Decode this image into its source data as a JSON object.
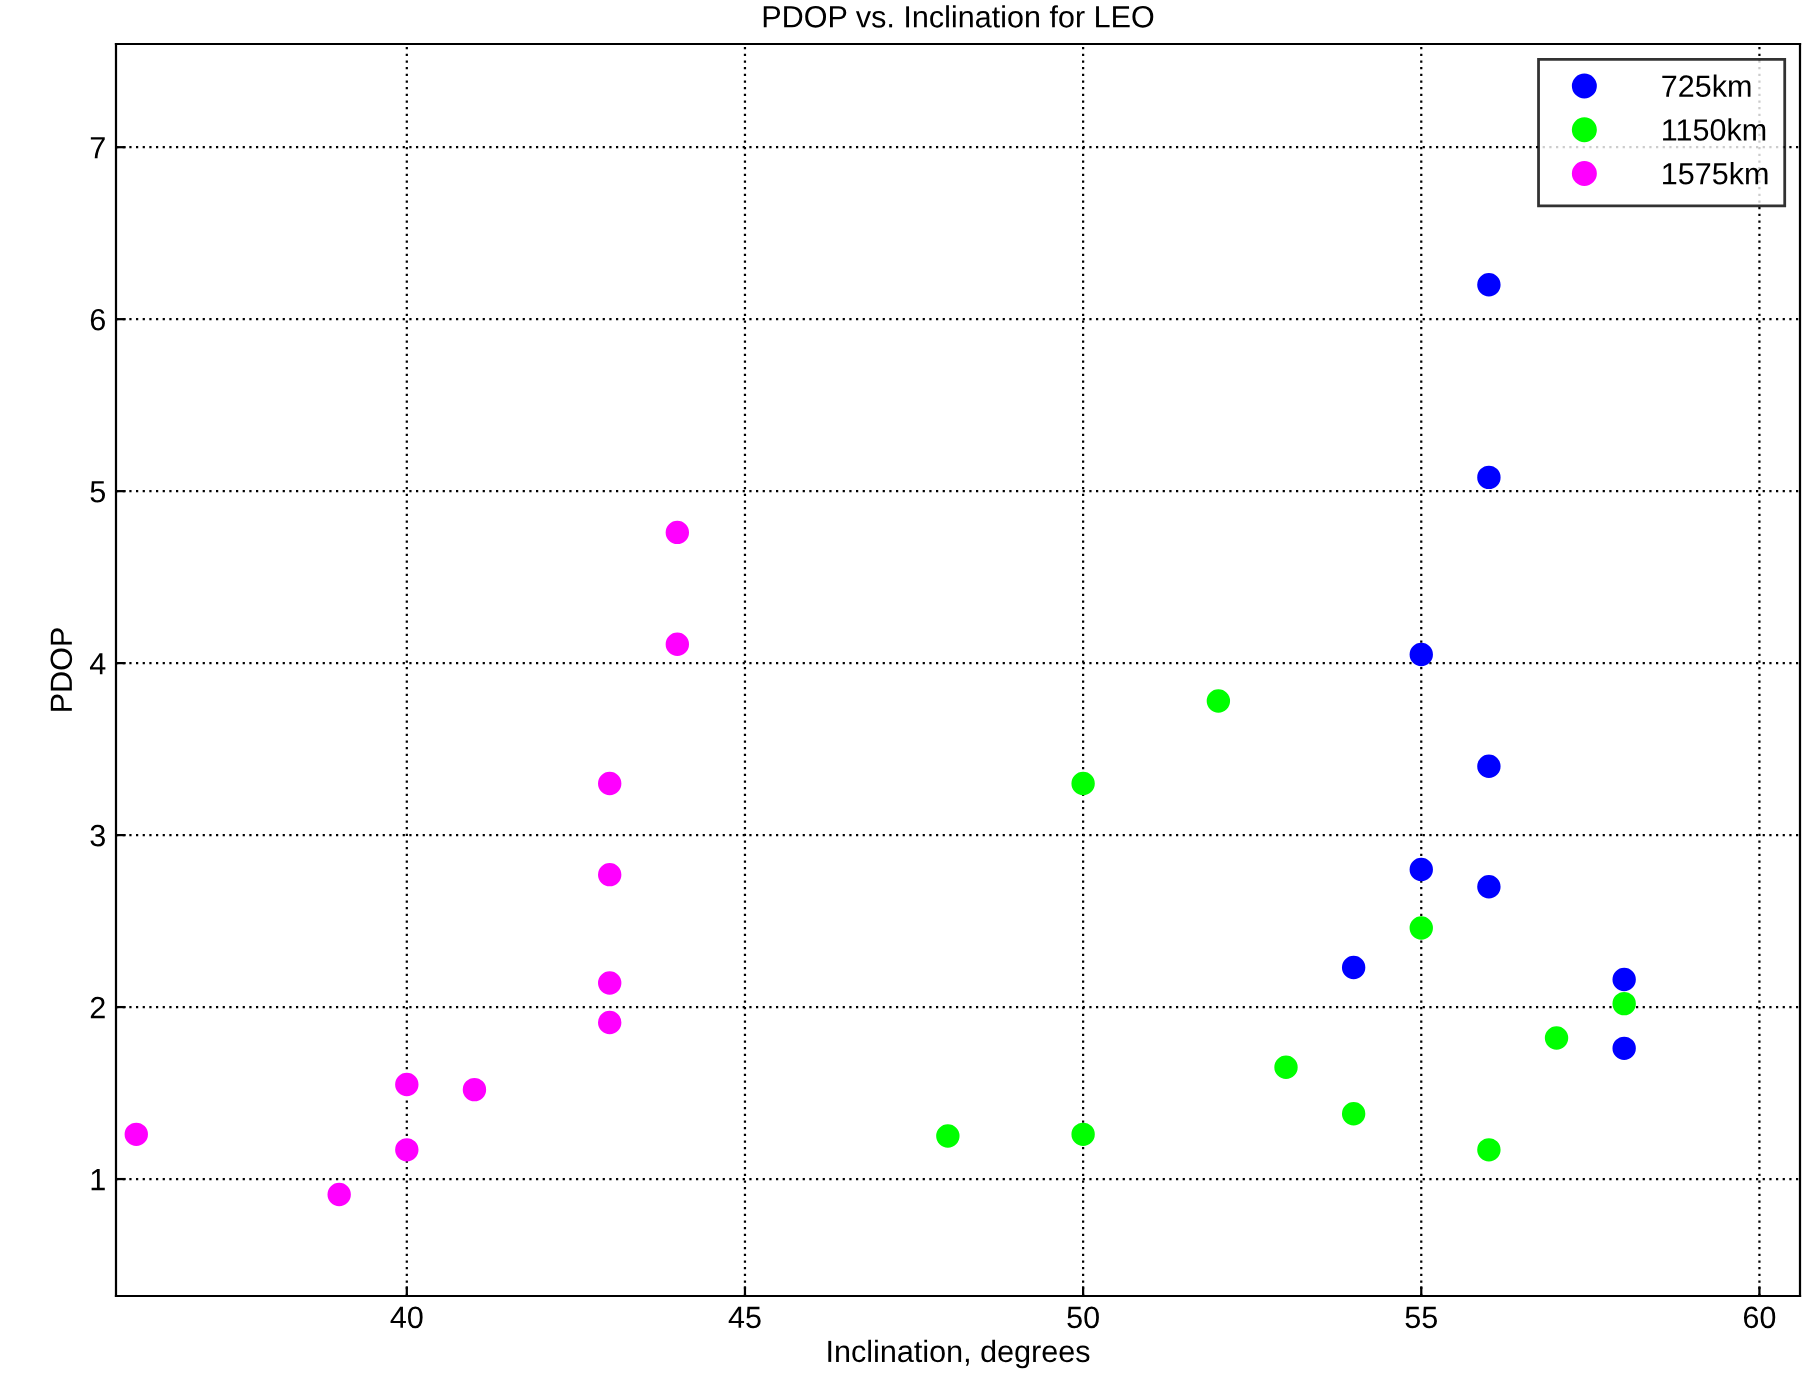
{
  "chart_data": {
    "type": "scatter",
    "title": "PDOP vs. Inclination for LEO",
    "xlabel": "Inclination, degrees",
    "ylabel": "PDOP",
    "xlim": [
      35.7,
      60.6
    ],
    "ylim": [
      0.32,
      7.6
    ],
    "xticks": [
      40,
      45,
      50,
      55,
      60
    ],
    "yticks": [
      1,
      2,
      3,
      4,
      5,
      6,
      7
    ],
    "grid": true,
    "legend": "top right",
    "marker": "circle",
    "series": [
      {
        "name": "725km",
        "color": "#0000ff",
        "x": [
          56,
          56,
          55,
          56,
          55,
          56,
          54,
          58,
          58
        ],
        "values": [
          6.2,
          5.08,
          4.05,
          3.4,
          2.8,
          2.7,
          2.23,
          2.16,
          1.76
        ]
      },
      {
        "name": "1150km",
        "color": "#00ff00",
        "x": [
          52,
          50,
          55,
          58,
          57,
          53,
          54,
          50,
          48,
          56
        ],
        "values": [
          3.78,
          3.3,
          2.46,
          2.02,
          1.82,
          1.65,
          1.38,
          1.26,
          1.25,
          1.17
        ]
      },
      {
        "name": "1575km",
        "color": "#ff00ff",
        "x": [
          44,
          44,
          43,
          43,
          43,
          43,
          40,
          41,
          40,
          36,
          39
        ],
        "values": [
          4.76,
          4.11,
          3.3,
          2.77,
          2.14,
          1.91,
          1.55,
          1.52,
          1.17,
          1.26,
          0.91
        ]
      }
    ]
  }
}
